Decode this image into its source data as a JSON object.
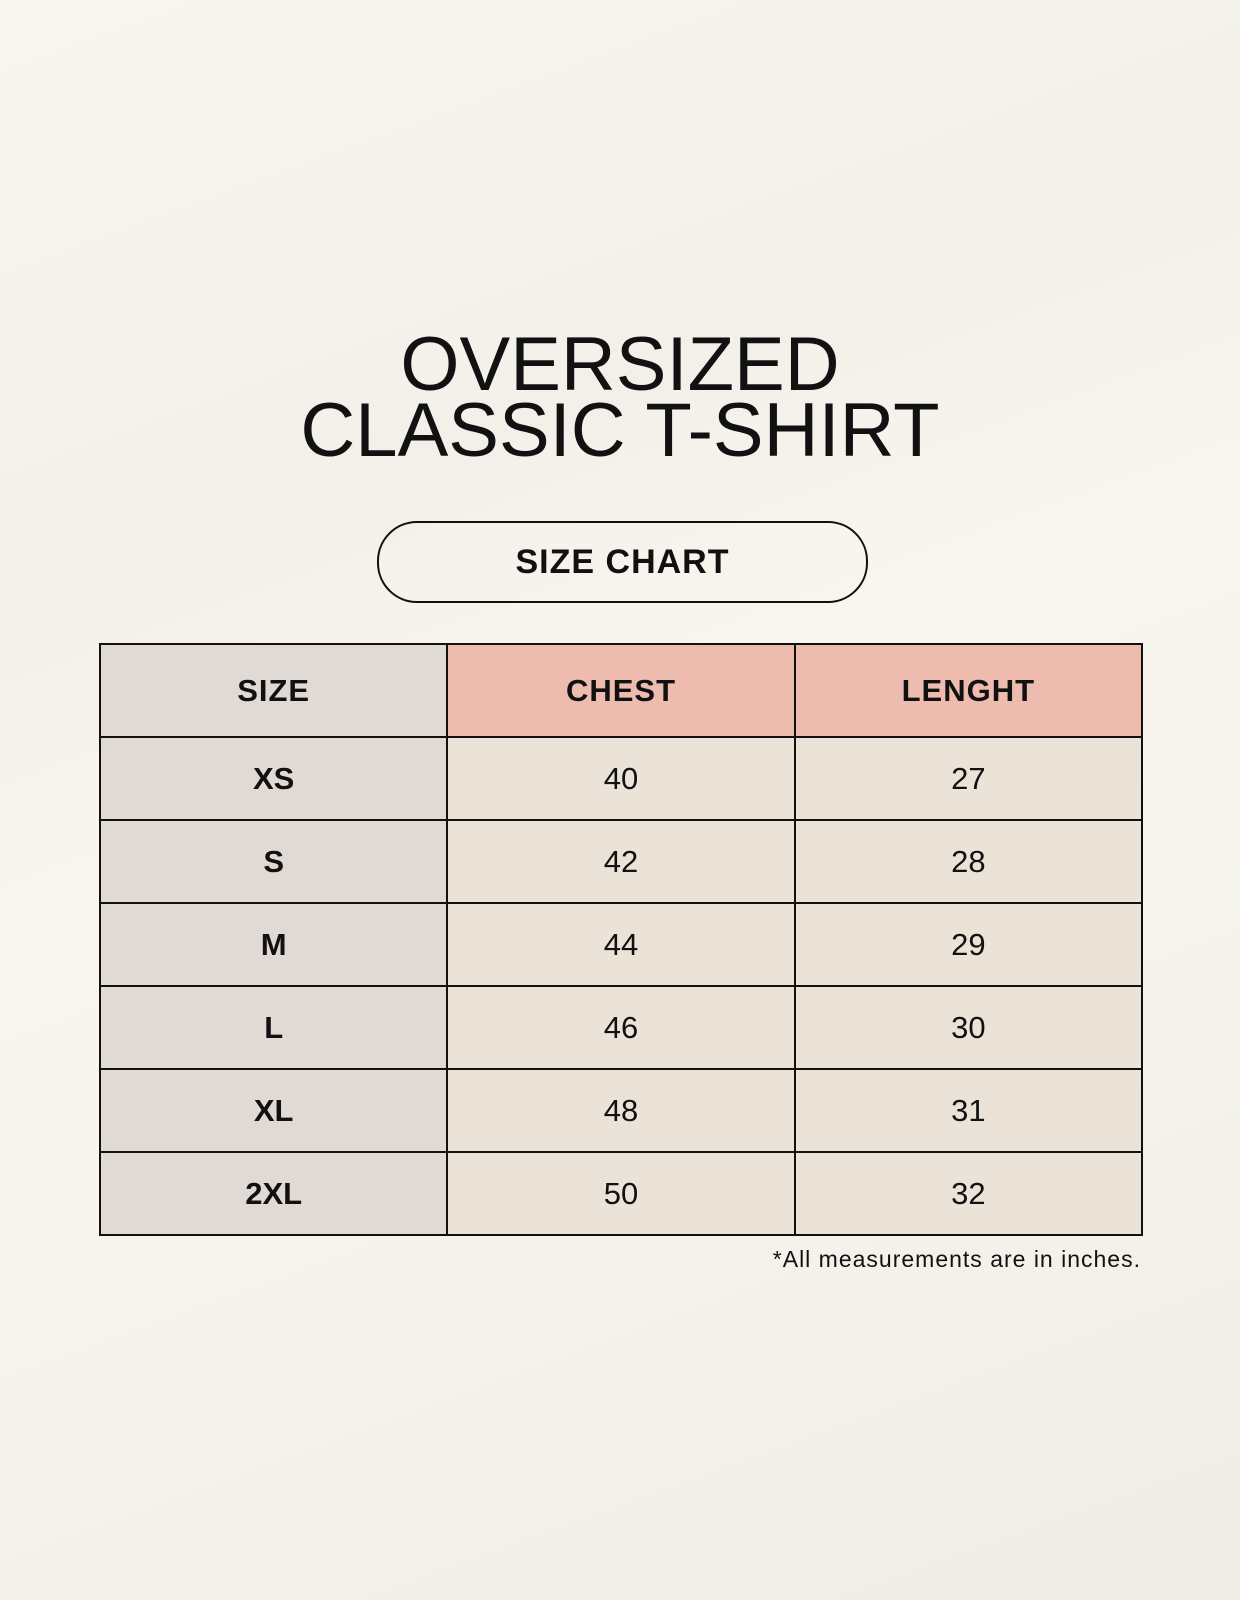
{
  "title": {
    "line1": "OVERSIZED",
    "line2": "CLASSIC T-SHIRT"
  },
  "badge": "SIZE CHART",
  "table": {
    "headers": [
      "SIZE",
      "CHEST",
      "LENGHT"
    ],
    "rows": [
      [
        "XS",
        "40",
        "27"
      ],
      [
        "S",
        "42",
        "28"
      ],
      [
        "M",
        "44",
        "29"
      ],
      [
        "L",
        "46",
        "30"
      ],
      [
        "XL",
        "48",
        "31"
      ],
      [
        "2XL",
        "50",
        "32"
      ]
    ]
  },
  "footnote": "*All measurements are in inches.",
  "colors": {
    "size_column": "#e0d9d4",
    "header_accent": "#edbcae",
    "body_cells": "#ebe3d8",
    "background": "#f8f5ef"
  }
}
